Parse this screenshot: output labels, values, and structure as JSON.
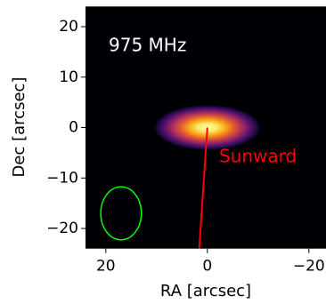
{
  "chart_data": {
    "type": "image",
    "annotation": "975 MHz",
    "arrow_label": "Sunward",
    "xlabel": "RA [arcsec]",
    "ylabel": "Dec [arcsec]",
    "xlim": [
      24,
      -24
    ],
    "ylim": [
      -24,
      24
    ],
    "xticks": [
      20,
      0,
      {
        "value": -20,
        "label": "−20"
      }
    ],
    "yticks": [
      20,
      10,
      0,
      {
        "value": -10,
        "label": "−10"
      },
      {
        "value": -20,
        "label": "−20"
      }
    ],
    "source": {
      "x": 0,
      "y": 0,
      "width": 21,
      "height": 9
    },
    "beam": {
      "x": 17,
      "y": -17,
      "width": 8,
      "height": 10.5,
      "color": "#00ff00"
    },
    "sunward": {
      "x": [
        0,
        1.6
      ],
      "y": [
        0,
        -24
      ],
      "color": "#ff0000"
    }
  }
}
